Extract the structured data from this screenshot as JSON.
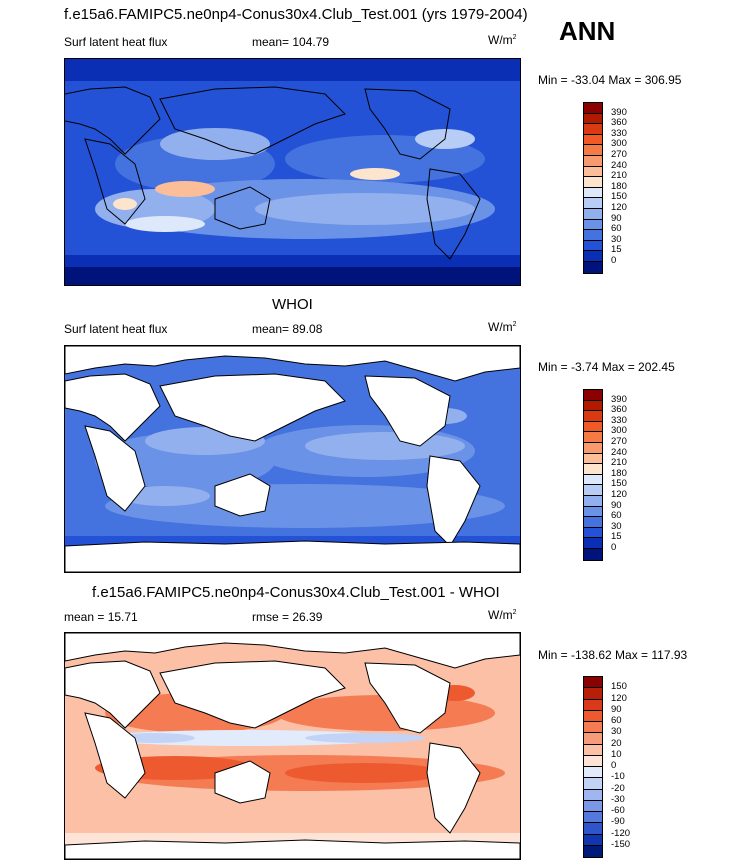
{
  "header": {
    "title": "f.e15a6.FAMIPC5.ne0np4-Conus30x4.Club_Test.001 (yrs 1979-2004)",
    "season": "ANN"
  },
  "panels": {
    "model": {
      "variable": "Surf latent heat flux",
      "mean_label": "mean= 104.79",
      "units_base": "W/m",
      "units_exp": "2",
      "minmax": "Min = -33.04 Max = 306.95",
      "colorbar": {
        "labels": [
          "390",
          "360",
          "330",
          "300",
          "270",
          "240",
          "210",
          "180",
          "150",
          "120",
          "90",
          "60",
          "30",
          "15",
          "0"
        ],
        "colors": [
          "#8b0000",
          "#b21a00",
          "#d93a12",
          "#f05a26",
          "#f47a46",
          "#f79a6e",
          "#fbbe98",
          "#fde4cc",
          "#dde8fb",
          "#b8cdf5",
          "#92b0ee",
          "#6a92e6",
          "#4472de",
          "#2452d6",
          "#0a2fb4",
          "#00137a"
        ]
      }
    },
    "obs": {
      "section_title": "WHOI",
      "variable": "Surf latent heat flux",
      "mean_label": "mean=  89.08",
      "units_base": "W/m",
      "units_exp": "2",
      "minmax": "Min =  -3.74 Max = 202.45",
      "colorbar": {
        "labels": [
          "390",
          "360",
          "330",
          "300",
          "270",
          "240",
          "210",
          "180",
          "150",
          "120",
          "90",
          "60",
          "30",
          "15",
          "0"
        ],
        "colors": [
          "#8b0000",
          "#b21a00",
          "#d93a12",
          "#f05a26",
          "#f47a46",
          "#f79a6e",
          "#fbbe98",
          "#fde4cc",
          "#dde8fb",
          "#b8cdf5",
          "#92b0ee",
          "#6a92e6",
          "#4472de",
          "#2452d6",
          "#0a2fb4",
          "#00137a"
        ]
      }
    },
    "diff": {
      "section_title": "f.e15a6.FAMIPC5.ne0np4-Conus30x4.Club_Test.001 - WHOI",
      "mean_label": "mean =  15.71",
      "rmse_label": "rmse =  26.39",
      "units_base": "W/m",
      "units_exp": "2",
      "minmax": "Min = -138.62 Max = 117.93",
      "colorbar": {
        "labels": [
          "150",
          "120",
          "90",
          "60",
          "30",
          "20",
          "10",
          "0",
          "-10",
          "-20",
          "-30",
          "-60",
          "-90",
          "-120",
          "-150"
        ],
        "colors": [
          "#8b0000",
          "#b81f0a",
          "#d93b1a",
          "#ee5a30",
          "#f47b52",
          "#f79c7a",
          "#fbc0a6",
          "#fde4d6",
          "#e2ebfb",
          "#c2d3f5",
          "#9fb7ee",
          "#7a98e6",
          "#5478dc",
          "#2e55cc",
          "#1235b0",
          "#001a7a"
        ]
      }
    }
  }
}
